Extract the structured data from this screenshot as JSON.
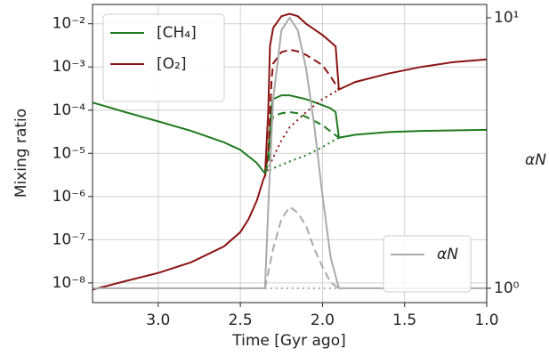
{
  "chart_data": {
    "type": "line",
    "xlabel": "Time [Gyr ago]",
    "ylabel": "Mixing ratio",
    "y2label": "αN",
    "xlim": [
      3.4,
      1.0
    ],
    "xticks": [
      {
        "value": 3,
        "label": "3.0"
      },
      {
        "value": 2.5,
        "label": "2.5"
      },
      {
        "value": 2,
        "label": "2.0"
      },
      {
        "value": 1.5,
        "label": "1.5"
      },
      {
        "value": 1,
        "label": "1.0"
      }
    ],
    "ylog": true,
    "ylim": [
      3.5e-09,
      0.028
    ],
    "yticks": [
      {
        "value": 1e-08,
        "label": "10⁻⁸"
      },
      {
        "value": 1e-07,
        "label": "10⁻⁷"
      },
      {
        "value": 1e-06,
        "label": "10⁻⁶"
      },
      {
        "value": 1e-05,
        "label": "10⁻⁵"
      },
      {
        "value": 0.0001,
        "label": "10⁻⁴"
      },
      {
        "value": 0.001,
        "label": "10⁻³"
      },
      {
        "value": 0.01,
        "label": "10⁻²"
      }
    ],
    "y2log": true,
    "y2lim": [
      0.885,
      11.2
    ],
    "y2ticks": [
      {
        "value": 1,
        "label": "10⁰"
      },
      {
        "value": 10,
        "label": "10¹"
      }
    ],
    "grid": true,
    "legend": "upper left",
    "y2_legend": "lower right",
    "series": [
      {
        "name": "[CH₄]",
        "color": "#1f7a1f",
        "dash": "solid",
        "x": [
          3.4,
          3.2,
          3.0,
          2.8,
          2.6,
          2.5,
          2.4,
          2.36,
          2.35,
          2.33,
          2.31,
          2.3,
          2.25,
          2.2,
          2.1,
          2.0,
          1.95,
          1.92,
          1.9,
          1.8,
          1.6,
          1.4,
          1.2,
          1.0
        ],
        "values": [
          0.00015,
          9e-05,
          5.5e-05,
          3.3e-05,
          1.8e-05,
          1.2e-05,
          6e-06,
          3.8e-06,
          3.5e-06,
          1e-05,
          0.00012,
          0.00018,
          0.00022,
          0.00022,
          0.00018,
          0.00013,
          0.00011,
          9e-05,
          2.3e-05,
          2.7e-05,
          3.1e-05,
          3.3e-05,
          3.4e-05,
          3.5e-05
        ]
      },
      {
        "name": "[O₂]",
        "color": "#8b1212",
        "dash": "solid",
        "x": [
          3.4,
          3.2,
          3.0,
          2.8,
          2.6,
          2.5,
          2.45,
          2.4,
          2.36,
          2.35,
          2.33,
          2.32,
          2.3,
          2.25,
          2.2,
          2.15,
          2.1,
          2.0,
          1.95,
          1.92,
          1.9,
          1.8,
          1.6,
          1.4,
          1.2,
          1.0
        ],
        "values": [
          7e-09,
          1.1e-08,
          1.7e-08,
          3e-08,
          7e-08,
          1.5e-07,
          3e-07,
          8e-07,
          2.5e-06,
          3e-06,
          0.0001,
          0.003,
          0.008,
          0.015,
          0.017,
          0.015,
          0.01,
          0.0055,
          0.0038,
          0.003,
          0.0003,
          0.00045,
          0.0007,
          0.001,
          0.0013,
          0.0015
        ]
      },
      {
        "color": "#8b1212",
        "dash": "dashed",
        "x": [
          2.35,
          2.33,
          2.31,
          2.3,
          2.25,
          2.2,
          2.15,
          2.1,
          2.0,
          1.95,
          1.9
        ],
        "values": [
          3e-06,
          1e-05,
          0.0005,
          0.0012,
          0.0022,
          0.0025,
          0.0023,
          0.0019,
          0.0011,
          0.0006,
          0.0003
        ]
      },
      {
        "color": "#8b1212",
        "dash": "dotted",
        "x": [
          2.35,
          2.3,
          2.25,
          2.2,
          2.1,
          2.0,
          1.9
        ],
        "values": [
          3e-06,
          8e-06,
          2e-05,
          4e-05,
          9e-05,
          0.00018,
          0.0003
        ]
      },
      {
        "color": "#1f7a1f",
        "dash": "dashed",
        "x": [
          2.35,
          2.33,
          2.31,
          2.3,
          2.25,
          2.2,
          2.15,
          2.1,
          2.0,
          1.95,
          1.9
        ],
        "values": [
          3.5e-06,
          6e-06,
          5e-05,
          7e-05,
          8.5e-05,
          9e-05,
          8.5e-05,
          7e-05,
          4.5e-05,
          3.2e-05,
          2.3e-05
        ]
      },
      {
        "color": "#1f7a1f",
        "dash": "dotted",
        "x": [
          2.35,
          2.3,
          2.2,
          2.1,
          2.0,
          1.9
        ],
        "values": [
          3.5e-06,
          4.5e-06,
          6.5e-06,
          9e-06,
          1.4e-05,
          2.3e-05
        ]
      },
      {
        "name": "αN",
        "color": "#aaaaaa",
        "dash": "solid",
        "axis": "y2",
        "x": [
          3.4,
          2.35,
          2.33,
          2.3,
          2.25,
          2.2,
          2.15,
          2.1,
          2.05,
          2.0,
          1.95,
          1.9,
          1.0
        ],
        "values": [
          1,
          1,
          2,
          5,
          9,
          10,
          9,
          6.5,
          4,
          2.2,
          1.3,
          1,
          1
        ]
      },
      {
        "color": "#aaaaaa",
        "dash": "dashed",
        "axis": "y2",
        "x": [
          2.35,
          2.3,
          2.25,
          2.2,
          2.15,
          2.1,
          2.05,
          2.0,
          1.95,
          1.9
        ],
        "values": [
          1,
          1.4,
          1.8,
          2,
          1.9,
          1.7,
          1.4,
          1.2,
          1.05,
          1
        ]
      },
      {
        "color": "#aaaaaa",
        "dash": "dotted",
        "axis": "y2",
        "x": [
          2.35,
          1.9
        ],
        "values": [
          1,
          1
        ]
      }
    ]
  }
}
